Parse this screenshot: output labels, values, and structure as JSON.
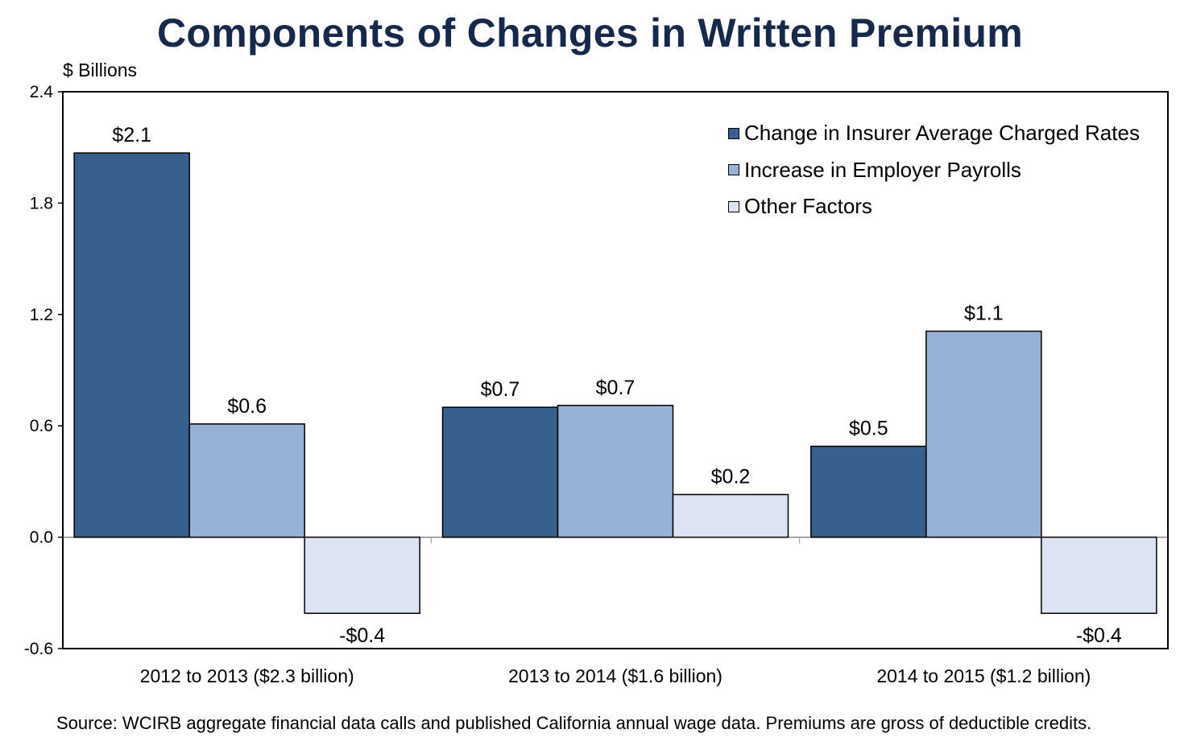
{
  "title": "Components of Changes in Written Premium",
  "unit_label": "$ Billions",
  "source": "Source: WCIRB aggregate financial data calls and published California annual wage data. Premiums are gross of deductible credits.",
  "chart_data": {
    "type": "bar",
    "title": "Components of Changes in Written Premium",
    "ylabel": "$ Billions",
    "xlabel": "",
    "ylim": [
      -0.6,
      2.4
    ],
    "yticks": [
      2.4,
      1.8,
      1.2,
      0.6,
      0.0,
      -0.6
    ],
    "ytick_labels": [
      "2.4",
      "1.8",
      "1.2",
      "0.6",
      "0.0",
      "-0.6"
    ],
    "categories": [
      "2012 to 2013 ($2.3 billion)",
      "2013 to 2014 ($1.6 billion)",
      "2014 to 2015 ($1.2 billion)"
    ],
    "legend_position": "top-right",
    "grid": false,
    "series": [
      {
        "name": "Change in Insurer Average Charged Rates",
        "color": "#38608f",
        "values": [
          2.07,
          0.7,
          0.49
        ],
        "labels": [
          "$2.1",
          "$0.7",
          "$0.5"
        ]
      },
      {
        "name": "Increase in Employer Payrolls",
        "color": "#96b2d6",
        "values": [
          0.61,
          0.71,
          1.11
        ],
        "labels": [
          "$0.6",
          "$0.7",
          "$1.1"
        ]
      },
      {
        "name": "Other Factors",
        "color": "#dbe4f0",
        "values": [
          -0.41,
          0.23,
          -0.41
        ],
        "labels": [
          "-$0.4",
          "$0.2",
          "-$0.4"
        ]
      }
    ]
  }
}
